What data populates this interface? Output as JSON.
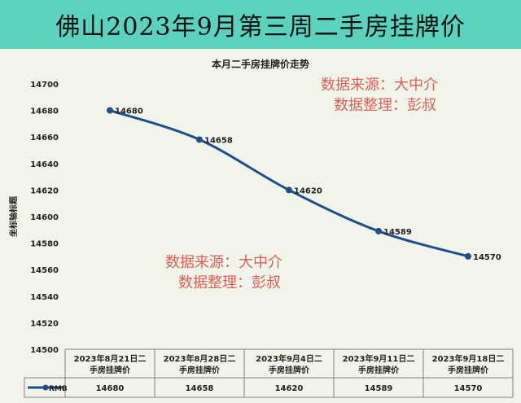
{
  "banner": {
    "title": "佛山2023年9月第三周二手房挂牌价"
  },
  "watermarks": [
    {
      "line1": "数据来源：大中介",
      "line2": "数据整理：彭叔"
    },
    {
      "line1": "数据来源：大中介",
      "line2": "数据整理：彭叔"
    }
  ],
  "colors": {
    "banner": "#5bd2bd",
    "plot_background": "#f1f4e9",
    "line": "#1f4e8c",
    "watermark": "#d9473f"
  },
  "chart_data": {
    "type": "line",
    "title": "本月二手房挂牌价走势",
    "xlabel": "",
    "ylabel": "坐标轴标题",
    "categories": [
      "2023年8月21日二手房挂牌价",
      "2023年8月28日二手房挂牌价",
      "2023年9月4日二手房挂牌价",
      "2023年9月11日二手房挂牌价",
      "2023年9月18日二手房挂牌价"
    ],
    "series": [
      {
        "name": "RMB",
        "values": [
          14680,
          14658,
          14620,
          14589,
          14570
        ]
      }
    ],
    "ylim": [
      14500,
      14700
    ],
    "yticks": [
      14500,
      14520,
      14540,
      14560,
      14580,
      14600,
      14620,
      14640,
      14660,
      14680,
      14700
    ],
    "data_labels": true,
    "grid": false,
    "data_table": true,
    "legend": "data-table-left"
  }
}
